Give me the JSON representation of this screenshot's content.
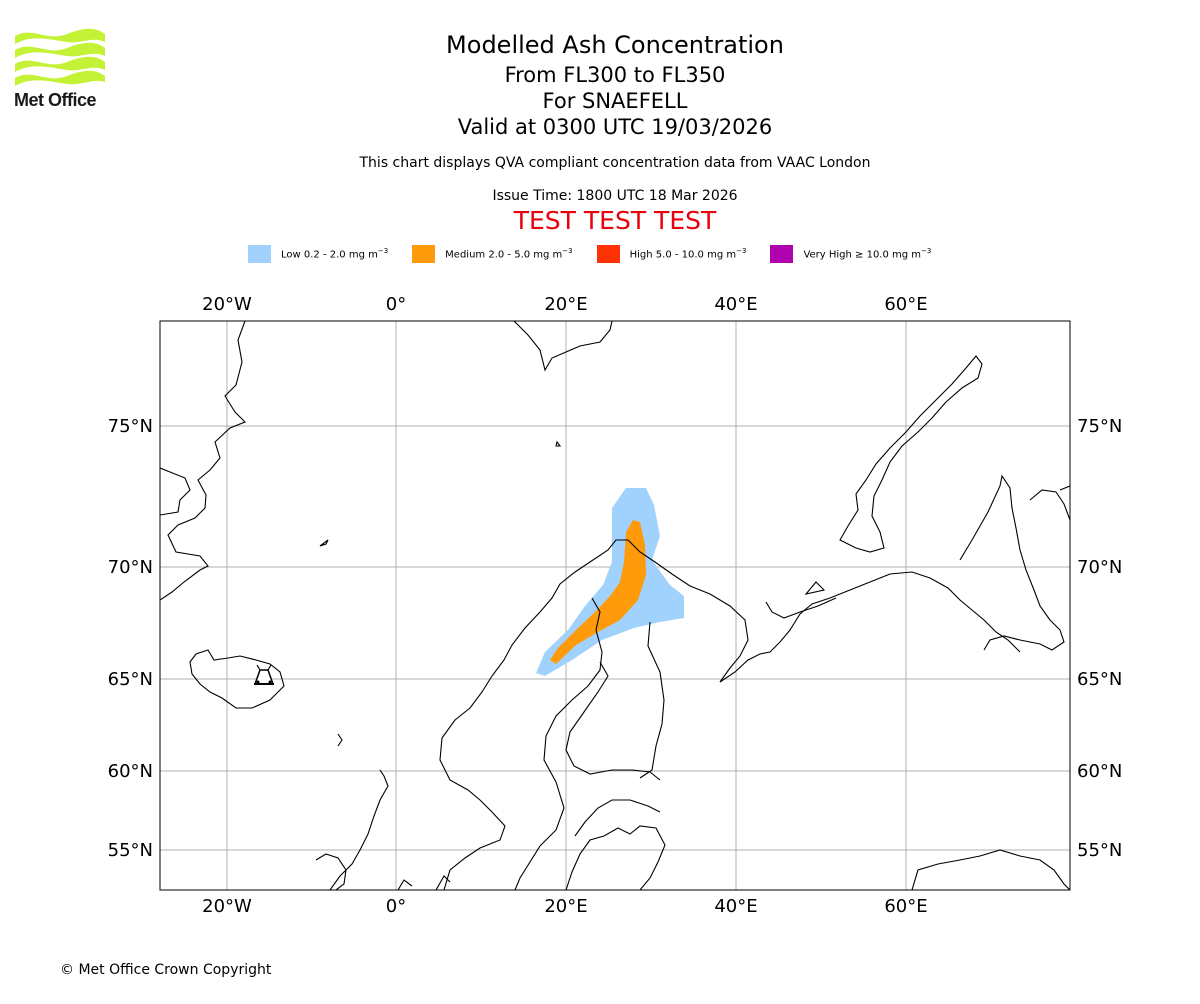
{
  "logo": {
    "text": "Met Office",
    "accent": "#c4f236",
    "icon": "met-office-wave-logo"
  },
  "header": {
    "title": "Modelled Ash Concentration",
    "levels": "From FL300 to FL350",
    "volcano": "For SNAEFELL",
    "valid": "Valid at 0300 UTC 19/03/2026",
    "description": "This chart displays QVA compliant concentration data from VAAC London",
    "issue_time": "Issue Time: 1800 UTC 18 Mar 2026",
    "test_banner": "TEST TEST TEST"
  },
  "legend": [
    {
      "label": "Low 0.2 - 2.0 mg m",
      "unit_exp": "−3",
      "color": "#a0d2fd"
    },
    {
      "label": "Medium 2.0 - 5.0 mg m",
      "unit_exp": "−3",
      "color": "#ff9a0a"
    },
    {
      "label": "High 5.0 - 10.0 mg m",
      "unit_exp": "−3",
      "color": "#ff3206"
    },
    {
      "label": "Very High  ≥  10.0 mg m",
      "unit_exp": "−3",
      "color": "#ad02ad"
    }
  ],
  "map": {
    "lon_ticks": [
      "20°W",
      "0°",
      "20°E",
      "40°E",
      "60°E"
    ],
    "lat_ticks": [
      "75°N",
      "70°N",
      "65°N",
      "60°N",
      "55°N"
    ],
    "volcano_icon": "volcano-icon",
    "grid": true
  },
  "footer": {
    "copyright": "© Met Office Crown Copyright"
  }
}
